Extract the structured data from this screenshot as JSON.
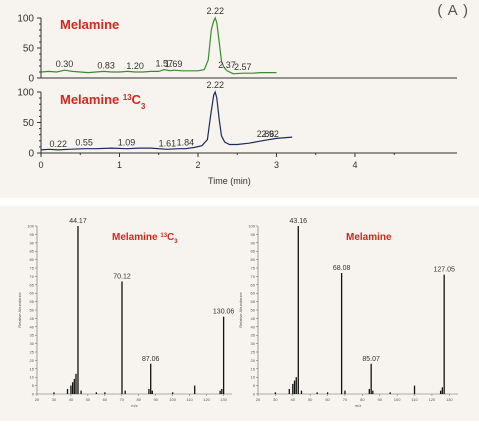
{
  "panel_label": "( A )",
  "colors": {
    "green_trace": "#3c8c2e",
    "blue_trace": "#1c2c5a",
    "title_red": "#d9261c",
    "axis": "#333333",
    "spectrum_bar": "#111111"
  },
  "chart_data": [
    {
      "type": "line",
      "id": "chromatogram-melamine",
      "title": "Melamine",
      "xlabel": "",
      "ylim": [
        0,
        100
      ],
      "xlim": [
        0,
        5.3
      ],
      "yticks": [
        "0",
        "50",
        "100"
      ],
      "series": [
        {
          "x": [
            0.0,
            0.1,
            0.2,
            0.3,
            0.4,
            0.5,
            0.6,
            0.7,
            0.8,
            0.9,
            1.0,
            1.1,
            1.2,
            1.3,
            1.4,
            1.5,
            1.57,
            1.65,
            1.69,
            1.8,
            1.9,
            2.0,
            2.08,
            2.13,
            2.17,
            2.2,
            2.22,
            2.24,
            2.27,
            2.3,
            2.33,
            2.37,
            2.45,
            2.57,
            2.7,
            2.8,
            3.0
          ],
          "y": [
            10,
            11,
            10,
            13,
            11,
            10,
            9,
            10,
            11,
            10,
            10,
            11,
            10,
            10,
            11,
            11,
            14,
            12,
            13,
            12,
            12,
            12,
            14,
            30,
            80,
            95,
            100,
            92,
            60,
            28,
            18,
            12,
            7,
            8,
            8,
            9,
            9
          ]
        }
      ],
      "peak_labels": [
        "0.30",
        "0.83",
        "1.20",
        "1.57",
        "1.69",
        "2.22",
        "2.37",
        "2.57"
      ],
      "peak_label_x": [
        0.3,
        0.83,
        1.2,
        1.57,
        1.69,
        2.22,
        2.37,
        2.57
      ]
    },
    {
      "type": "line",
      "id": "chromatogram-melamine-13c3",
      "title": "Melamine",
      "title_superscript": "13",
      "title_suffix": "C",
      "title_subscript": "3",
      "xlabel": "Time (min)",
      "ylim": [
        0,
        100
      ],
      "xlim": [
        0,
        5.3
      ],
      "yticks": [
        "0",
        "50",
        "100"
      ],
      "xticks": [
        "0",
        "1",
        "2",
        "3",
        "4"
      ],
      "series": [
        {
          "x": [
            0.0,
            0.1,
            0.22,
            0.35,
            0.55,
            0.7,
            0.9,
            1.09,
            1.25,
            1.4,
            1.61,
            1.75,
            1.84,
            1.95,
            2.05,
            2.12,
            2.16,
            2.2,
            2.22,
            2.24,
            2.27,
            2.3,
            2.34,
            2.4,
            2.5,
            2.65,
            2.86,
            3.0,
            3.2
          ],
          "y": [
            5,
            6,
            5,
            6,
            7,
            7,
            8,
            7,
            8,
            8,
            6,
            7,
            7,
            9,
            12,
            22,
            60,
            95,
            100,
            90,
            55,
            28,
            18,
            14,
            14,
            16,
            21,
            24,
            26
          ]
        }
      ],
      "peak_labels": [
        "0.22",
        "0.55",
        "1.09",
        "1.61",
        "1.84",
        "2.22",
        "2.86",
        "2.92"
      ],
      "peak_label_x": [
        0.22,
        0.55,
        1.09,
        1.61,
        1.84,
        2.22,
        2.86,
        2.92
      ]
    },
    {
      "type": "bar",
      "id": "spectrum-melamine-13c3",
      "title": "Melamine",
      "title_superscript": "13",
      "title_suffix": "C",
      "title_subscript": "3",
      "xlabel": "m/z",
      "ylabel": "Relative Abundance",
      "xlim": [
        20,
        135
      ],
      "ylim": [
        0,
        100
      ],
      "xticks": [
        "20",
        "30",
        "40",
        "50",
        "60",
        "70",
        "80",
        "90",
        "100",
        "110",
        "120",
        "130"
      ],
      "yticks": [
        "0",
        "5",
        "10",
        "15",
        "20",
        "25",
        "30",
        "35",
        "40",
        "45",
        "50",
        "55",
        "60",
        "65",
        "70",
        "75",
        "80",
        "85",
        "90",
        "95",
        "100"
      ],
      "mz": [
        30,
        38,
        40,
        41,
        42,
        43,
        44.17,
        46,
        55,
        60,
        70.12,
        72,
        86,
        87.06,
        88,
        100,
        113,
        128,
        129,
        130.06
      ],
      "abundance": [
        1,
        3,
        5,
        7,
        9,
        12,
        100,
        2,
        1,
        1,
        67,
        2,
        3,
        18,
        2,
        1,
        5,
        2,
        3,
        46
      ],
      "labels": [
        "44.17",
        "70.12",
        "87.06",
        "130.06"
      ],
      "label_mz": [
        44.17,
        70.12,
        87.06,
        130.06
      ],
      "label_abundance": [
        100,
        67,
        18,
        46
      ]
    },
    {
      "type": "bar",
      "id": "spectrum-melamine",
      "title": "Melamine",
      "xlabel": "m/z",
      "ylabel": "Relative Abundance",
      "xlim": [
        20,
        135
      ],
      "ylim": [
        0,
        100
      ],
      "xticks": [
        "20",
        "30",
        "40",
        "50",
        "60",
        "70",
        "80",
        "90",
        "100",
        "110",
        "120",
        "130"
      ],
      "yticks": [
        "0",
        "5",
        "10",
        "15",
        "20",
        "25",
        "30",
        "35",
        "40",
        "45",
        "50",
        "55",
        "60",
        "65",
        "70",
        "75",
        "80",
        "85",
        "90",
        "95",
        "100"
      ],
      "mz": [
        30,
        38,
        40,
        41,
        42,
        43.16,
        45,
        54,
        60,
        68.08,
        70,
        84,
        85.07,
        86,
        96,
        110,
        125,
        126,
        127.05
      ],
      "abundance": [
        1,
        3,
        6,
        8,
        10,
        100,
        2,
        1,
        1,
        72,
        2,
        3,
        18,
        2,
        1,
        5,
        2,
        4,
        71
      ],
      "labels": [
        "43.16",
        "68.08",
        "85.07",
        "127.05"
      ],
      "label_mz": [
        43.16,
        68.08,
        85.07,
        127.05
      ],
      "label_abundance": [
        100,
        72,
        18,
        71
      ]
    }
  ]
}
